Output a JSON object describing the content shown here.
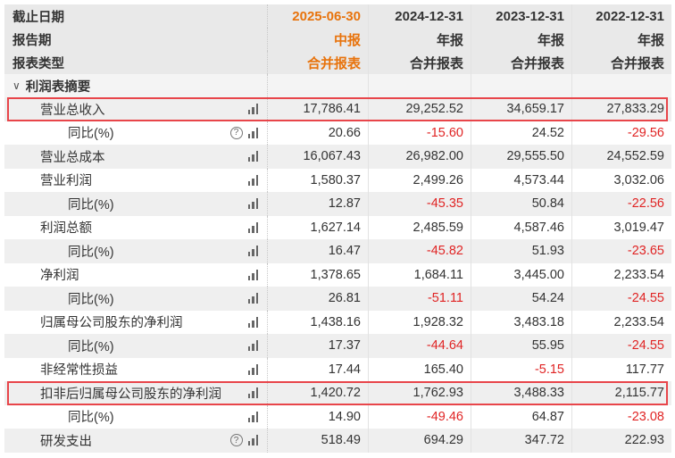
{
  "colors": {
    "current_period": "#e8730c",
    "negative": "#e02424",
    "highlight_border": "#e8454a"
  },
  "header": {
    "rows": [
      {
        "label": "截止日期",
        "values": [
          "2025-06-30",
          "2024-12-31",
          "2023-12-31",
          "2022-12-31"
        ]
      },
      {
        "label": "报告期",
        "values": [
          "中报",
          "年报",
          "年报",
          "年报"
        ]
      },
      {
        "label": "报表类型",
        "values": [
          "合并报表",
          "合并报表",
          "合并报表",
          "合并报表"
        ]
      }
    ]
  },
  "section": {
    "label": "利润表摘要",
    "icon": "chevron-down-icon"
  },
  "rows": [
    {
      "label": "营业总收入",
      "level": 1,
      "help": false,
      "highlight": true,
      "values": [
        "17,786.41",
        "29,252.52",
        "34,659.17",
        "27,833.29"
      ]
    },
    {
      "label": "同比(%)",
      "level": 2,
      "help": true,
      "values": [
        "20.66",
        "-15.60",
        "24.52",
        "-29.56"
      ]
    },
    {
      "label": "营业总成本",
      "level": 1,
      "help": false,
      "values": [
        "16,067.43",
        "26,982.00",
        "29,555.50",
        "24,552.59"
      ]
    },
    {
      "label": "营业利润",
      "level": 1,
      "help": false,
      "values": [
        "1,580.37",
        "2,499.26",
        "4,573.44",
        "3,032.06"
      ]
    },
    {
      "label": "同比(%)",
      "level": 2,
      "help": false,
      "values": [
        "12.87",
        "-45.35",
        "50.84",
        "-22.56"
      ]
    },
    {
      "label": "利润总额",
      "level": 1,
      "help": false,
      "values": [
        "1,627.14",
        "2,485.59",
        "4,587.46",
        "3,019.47"
      ]
    },
    {
      "label": "同比(%)",
      "level": 2,
      "help": false,
      "values": [
        "16.47",
        "-45.82",
        "51.93",
        "-23.65"
      ]
    },
    {
      "label": "净利润",
      "level": 1,
      "help": false,
      "values": [
        "1,378.65",
        "1,684.11",
        "3,445.00",
        "2,233.54"
      ]
    },
    {
      "label": "同比(%)",
      "level": 2,
      "help": false,
      "values": [
        "26.81",
        "-51.11",
        "54.24",
        "-24.55"
      ]
    },
    {
      "label": "归属母公司股东的净利润",
      "level": 1,
      "help": false,
      "values": [
        "1,438.16",
        "1,928.32",
        "3,483.18",
        "2,233.54"
      ]
    },
    {
      "label": "同比(%)",
      "level": 2,
      "help": false,
      "values": [
        "17.37",
        "-44.64",
        "55.95",
        "-24.55"
      ]
    },
    {
      "label": "非经常性损益",
      "level": 1,
      "help": false,
      "values": [
        "17.44",
        "165.40",
        "-5.15",
        "117.77"
      ]
    },
    {
      "label": "扣非后归属母公司股东的净利润",
      "level": 1,
      "help": false,
      "highlight": true,
      "values": [
        "1,420.72",
        "1,762.93",
        "3,488.33",
        "2,115.77"
      ]
    },
    {
      "label": "同比(%)",
      "level": 2,
      "help": false,
      "values": [
        "14.90",
        "-49.46",
        "64.87",
        "-23.08"
      ]
    },
    {
      "label": "研发支出",
      "level": 1,
      "help": true,
      "values": [
        "518.49",
        "694.29",
        "347.72",
        "222.93"
      ]
    }
  ]
}
